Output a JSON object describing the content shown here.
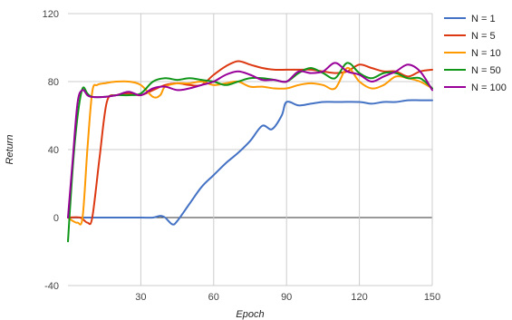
{
  "chart_data": {
    "type": "line",
    "xlabel": "Epoch",
    "ylabel": "Return",
    "xlim": [
      0,
      150
    ],
    "ylim": [
      -40,
      120
    ],
    "x_ticks": [
      30,
      60,
      90,
      120,
      150
    ],
    "y_ticks": [
      -40,
      0,
      40,
      80,
      120
    ],
    "x_tick_labels": [
      "30",
      "60",
      "90",
      "120",
      "150"
    ],
    "y_tick_labels": [
      "-40",
      "0",
      "40",
      "80",
      "120"
    ],
    "grid": true,
    "legend_position": "right",
    "series": [
      {
        "name": "N = 1",
        "color": "#4472c4",
        "points": [
          [
            0,
            0
          ],
          [
            10,
            0
          ],
          [
            20,
            0
          ],
          [
            30,
            0
          ],
          [
            35,
            0
          ],
          [
            38,
            1
          ],
          [
            40,
            0
          ],
          [
            43,
            -4
          ],
          [
            45,
            -2
          ],
          [
            50,
            8
          ],
          [
            55,
            18
          ],
          [
            60,
            25
          ],
          [
            65,
            32
          ],
          [
            70,
            38
          ],
          [
            75,
            45
          ],
          [
            80,
            54
          ],
          [
            84,
            52
          ],
          [
            88,
            60
          ],
          [
            90,
            68
          ],
          [
            95,
            66
          ],
          [
            100,
            67
          ],
          [
            105,
            68
          ],
          [
            110,
            68
          ],
          [
            120,
            68
          ],
          [
            125,
            67
          ],
          [
            130,
            68
          ],
          [
            135,
            68
          ],
          [
            140,
            69
          ],
          [
            145,
            69
          ],
          [
            150,
            69
          ]
        ]
      },
      {
        "name": "N = 5",
        "color": "#dc3912",
        "points": [
          [
            0,
            0
          ],
          [
            5,
            0
          ],
          [
            8,
            -3
          ],
          [
            10,
            0
          ],
          [
            13,
            35
          ],
          [
            16,
            68
          ],
          [
            20,
            72
          ],
          [
            25,
            73
          ],
          [
            30,
            72
          ],
          [
            35,
            75
          ],
          [
            40,
            78
          ],
          [
            45,
            79
          ],
          [
            50,
            78
          ],
          [
            55,
            78
          ],
          [
            60,
            84
          ],
          [
            65,
            89
          ],
          [
            70,
            92
          ],
          [
            75,
            90
          ],
          [
            80,
            88
          ],
          [
            85,
            87
          ],
          [
            90,
            87
          ],
          [
            95,
            87
          ],
          [
            100,
            87
          ],
          [
            105,
            86
          ],
          [
            110,
            85
          ],
          [
            115,
            86
          ],
          [
            120,
            90
          ],
          [
            125,
            88
          ],
          [
            130,
            86
          ],
          [
            135,
            86
          ],
          [
            140,
            83
          ],
          [
            145,
            86
          ],
          [
            150,
            87
          ]
        ]
      },
      {
        "name": "N = 10",
        "color": "#ff9900",
        "points": [
          [
            0,
            0
          ],
          [
            2,
            -2
          ],
          [
            4,
            -3
          ],
          [
            6,
            0
          ],
          [
            8,
            40
          ],
          [
            10,
            74
          ],
          [
            12,
            78
          ],
          [
            15,
            79
          ],
          [
            20,
            80
          ],
          [
            25,
            80
          ],
          [
            30,
            78
          ],
          [
            35,
            71
          ],
          [
            38,
            72
          ],
          [
            40,
            77
          ],
          [
            45,
            79
          ],
          [
            50,
            79
          ],
          [
            55,
            80
          ],
          [
            60,
            78
          ],
          [
            65,
            79
          ],
          [
            70,
            80
          ],
          [
            75,
            77
          ],
          [
            80,
            77
          ],
          [
            85,
            76
          ],
          [
            90,
            76
          ],
          [
            95,
            78
          ],
          [
            100,
            79
          ],
          [
            105,
            78
          ],
          [
            110,
            76
          ],
          [
            115,
            88
          ],
          [
            120,
            80
          ],
          [
            125,
            76
          ],
          [
            130,
            78
          ],
          [
            135,
            83
          ],
          [
            140,
            82
          ],
          [
            145,
            80
          ],
          [
            150,
            76
          ]
        ]
      },
      {
        "name": "N = 50",
        "color": "#109618",
        "points": [
          [
            0,
            -14
          ],
          [
            2,
            30
          ],
          [
            4,
            60
          ],
          [
            6,
            76
          ],
          [
            8,
            73
          ],
          [
            10,
            71
          ],
          [
            15,
            71
          ],
          [
            20,
            72
          ],
          [
            25,
            72
          ],
          [
            30,
            73
          ],
          [
            35,
            80
          ],
          [
            40,
            82
          ],
          [
            45,
            81
          ],
          [
            50,
            82
          ],
          [
            55,
            81
          ],
          [
            60,
            80
          ],
          [
            65,
            78
          ],
          [
            70,
            80
          ],
          [
            75,
            82
          ],
          [
            80,
            82
          ],
          [
            85,
            81
          ],
          [
            90,
            80
          ],
          [
            95,
            85
          ],
          [
            100,
            88
          ],
          [
            105,
            85
          ],
          [
            110,
            82
          ],
          [
            115,
            91
          ],
          [
            120,
            85
          ],
          [
            125,
            82
          ],
          [
            130,
            85
          ],
          [
            135,
            85
          ],
          [
            140,
            82
          ],
          [
            145,
            82
          ],
          [
            150,
            76
          ]
        ]
      },
      {
        "name": "N = 100",
        "color": "#990099",
        "points": [
          [
            0,
            0
          ],
          [
            2,
            35
          ],
          [
            4,
            68
          ],
          [
            6,
            75
          ],
          [
            8,
            72
          ],
          [
            10,
            71
          ],
          [
            15,
            71
          ],
          [
            20,
            72
          ],
          [
            25,
            74
          ],
          [
            30,
            72
          ],
          [
            35,
            76
          ],
          [
            40,
            77
          ],
          [
            45,
            75
          ],
          [
            50,
            76
          ],
          [
            55,
            78
          ],
          [
            60,
            80
          ],
          [
            65,
            84
          ],
          [
            70,
            86
          ],
          [
            75,
            84
          ],
          [
            80,
            81
          ],
          [
            85,
            81
          ],
          [
            90,
            80
          ],
          [
            95,
            86
          ],
          [
            100,
            85
          ],
          [
            105,
            86
          ],
          [
            110,
            91
          ],
          [
            115,
            86
          ],
          [
            120,
            84
          ],
          [
            125,
            80
          ],
          [
            130,
            83
          ],
          [
            135,
            86
          ],
          [
            140,
            90
          ],
          [
            145,
            86
          ],
          [
            150,
            75
          ]
        ]
      }
    ]
  }
}
